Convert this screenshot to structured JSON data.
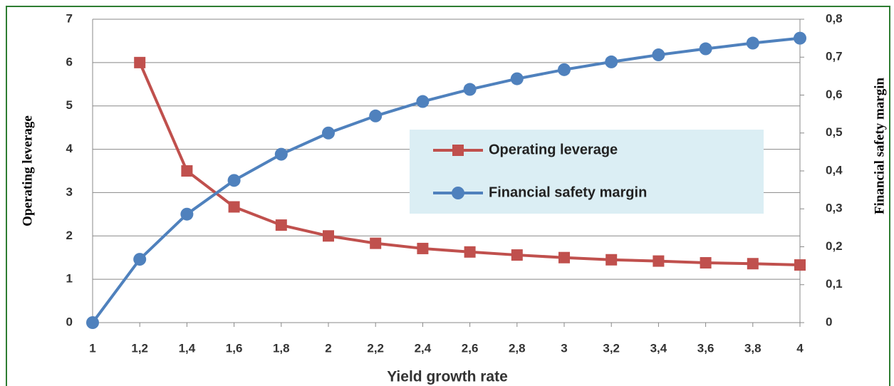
{
  "chart_data": {
    "type": "line",
    "x_label": "Yield growth rate",
    "y_label": "Operating leverage",
    "y2_label": "Financial safety margin",
    "x": [
      1,
      1.2,
      1.4,
      1.6,
      1.8,
      2,
      2.2,
      2.4,
      2.6,
      2.8,
      3,
      3.2,
      3.4,
      3.6,
      3.8,
      4
    ],
    "series": [
      {
        "name": "Operating leverage",
        "color": "#c0504d",
        "marker": "square",
        "values": [
          null,
          6,
          3.5,
          2.67,
          2.25,
          2,
          1.83,
          1.71,
          1.63,
          1.56,
          1.5,
          1.45,
          1.42,
          1.38,
          1.36,
          1.33
        ]
      },
      {
        "name": "Financial safety margin",
        "color": "#4f81bd",
        "marker": "circle",
        "axis": "y2",
        "values": [
          0,
          0.167,
          0.286,
          0.375,
          0.444,
          0.5,
          0.545,
          0.583,
          0.615,
          0.643,
          0.667,
          0.6875,
          0.706,
          0.722,
          0.737,
          0.75
        ]
      }
    ],
    "xlim": [
      1,
      4
    ],
    "xticks": [
      1,
      {
        "value": 1.2,
        "label": "1,2"
      },
      {
        "value": 1.4,
        "label": "1,4"
      },
      {
        "value": 1.6,
        "label": "1,6"
      },
      {
        "value": 1.8,
        "label": "1,8"
      },
      2,
      {
        "value": 2.2,
        "label": "2,2"
      },
      {
        "value": 2.4,
        "label": "2,4"
      },
      {
        "value": 2.6,
        "label": "2,6"
      },
      {
        "value": 2.8,
        "label": "2,8"
      },
      3,
      {
        "value": 3.2,
        "label": "3,2"
      },
      {
        "value": 3.4,
        "label": "3,4"
      },
      {
        "value": 3.6,
        "label": "3,6"
      },
      {
        "value": 3.8,
        "label": "3,8"
      },
      4
    ],
    "ylim": [
      0,
      7
    ],
    "yticks": [
      0,
      1,
      2,
      3,
      4,
      5,
      6,
      7
    ],
    "y2lim": [
      0,
      0.8
    ],
    "y2ticks": [
      0,
      {
        "value": 0.1,
        "label": "0,1"
      },
      {
        "value": 0.2,
        "label": "0,2"
      },
      {
        "value": 0.3,
        "label": "0,3"
      },
      {
        "value": 0.4,
        "label": "0,4"
      },
      {
        "value": 0.5,
        "label": "0,5"
      },
      {
        "value": 0.6,
        "label": "0,6"
      },
      {
        "value": 0.7,
        "label": "0,7"
      },
      {
        "value": 0.8,
        "label": "0,8"
      }
    ],
    "grid": true
  }
}
